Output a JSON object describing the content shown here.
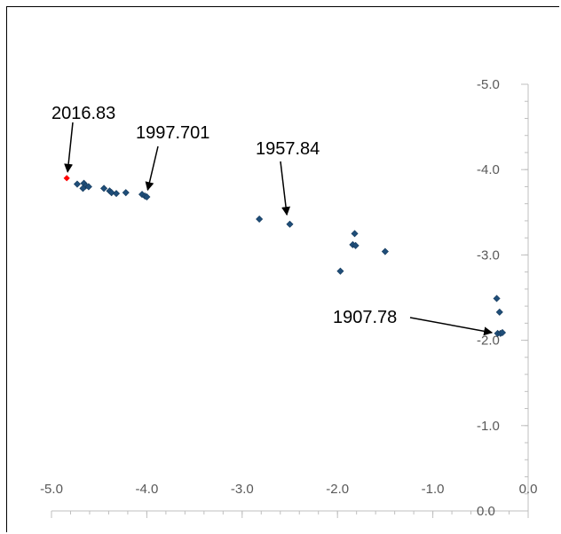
{
  "chart_data": {
    "type": "scatter",
    "title": "",
    "xlabel": "",
    "ylabel": "",
    "xlim": [
      -5.0,
      0.0
    ],
    "ylim": [
      -5.0,
      0.0
    ],
    "x_ticks": [
      "-5.0",
      "-4.0",
      "-3.0",
      "-2.0",
      "-1.0",
      "0.0"
    ],
    "y_ticks": [
      "-5.0",
      "-4.0",
      "-3.0",
      "-2.0",
      "-1.0",
      "0.0"
    ],
    "y_axis_reversed": true,
    "grid": false,
    "legend": "none",
    "colors": {
      "points": "#1f4e79",
      "highlight": "#ff0000",
      "axis": "#bfbfbf",
      "tick_text": "#595959"
    },
    "series": [
      {
        "points": [
          [
            -4.73,
            -3.83
          ],
          [
            -4.66,
            -3.84
          ],
          [
            -4.64,
            -3.81
          ],
          [
            -4.67,
            -3.78
          ],
          [
            -4.61,
            -3.8
          ],
          [
            -4.45,
            -3.78
          ],
          [
            -4.39,
            -3.75
          ],
          [
            -4.37,
            -3.73
          ],
          [
            -4.32,
            -3.72
          ],
          [
            -4.22,
            -3.73
          ],
          [
            -4.05,
            -3.71
          ],
          [
            -4.02,
            -3.69
          ],
          [
            -4.0,
            -3.68
          ],
          [
            -2.82,
            -3.42
          ],
          [
            -2.5,
            -3.36
          ],
          [
            -1.82,
            -3.25
          ],
          [
            -1.84,
            -3.12
          ],
          [
            -1.81,
            -3.11
          ],
          [
            -1.5,
            -3.04
          ],
          [
            -1.97,
            -2.81
          ],
          [
            -0.33,
            -2.49
          ],
          [
            -0.3,
            -2.33
          ],
          [
            -0.32,
            -2.08
          ],
          [
            -0.29,
            -2.08
          ],
          [
            -0.27,
            -2.09
          ]
        ]
      },
      {
        "points": [
          [
            -4.84,
            -3.9
          ]
        ]
      }
    ],
    "annotations": [
      {
        "text": "2016.83",
        "x": -4.84,
        "y": -3.9
      },
      {
        "text": "1997.701",
        "x": -4.0,
        "y": -3.74
      },
      {
        "text": "1957.84",
        "x": -2.55,
        "y": -3.47
      },
      {
        "text": "1907.78",
        "x": -0.38,
        "y": -2.1
      }
    ]
  }
}
